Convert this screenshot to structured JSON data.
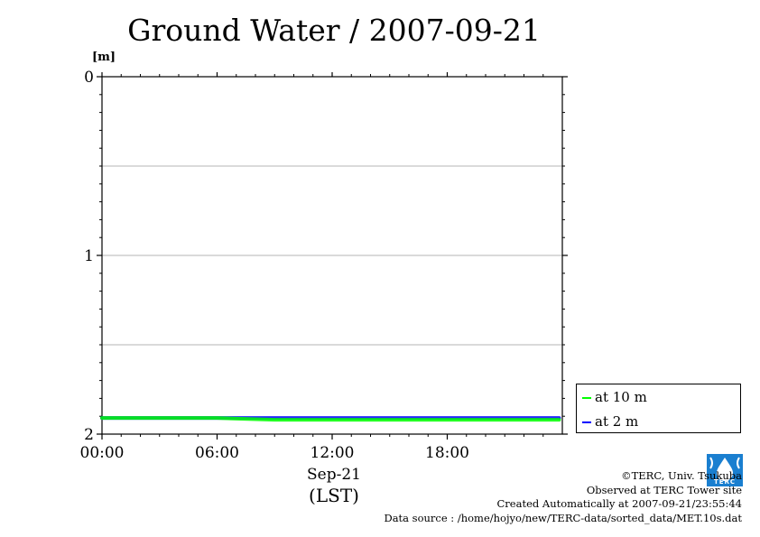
{
  "chart_data": {
    "type": "line",
    "title": "Ground Water / 2007-09-21",
    "ylabel": "[m]",
    "ylim": [
      0,
      2
    ],
    "y_inverted": true,
    "y_ticks": [
      "0",
      "1",
      "2"
    ],
    "x_ticks": [
      "00:00",
      "06:00",
      "12:00",
      "18:00"
    ],
    "x_date_label": "Sep-21",
    "x_zone_label": "(LST)",
    "grid": true,
    "legend_position": "bottom-right",
    "series": [
      {
        "name": "at 10 m",
        "color": "#00ff00",
        "x": [
          "00:00",
          "03:00",
          "06:00",
          "09:00",
          "12:00",
          "15:00",
          "18:00",
          "21:00",
          "23:50"
        ],
        "values": [
          1.91,
          1.91,
          1.91,
          1.92,
          1.92,
          1.92,
          1.92,
          1.92,
          1.92
        ]
      },
      {
        "name": "at 2 m",
        "color": "#0000ff",
        "x": [
          "00:00",
          "03:00",
          "06:00",
          "09:00",
          "12:00",
          "15:00",
          "18:00",
          "21:00",
          "23:50"
        ],
        "values": [
          1.91,
          1.91,
          1.91,
          1.91,
          1.91,
          1.91,
          1.91,
          1.91,
          1.91
        ]
      }
    ]
  },
  "credits": {
    "copyright": "©TERC, Univ. Tsukuba",
    "observed": "Observed at TERC Tower site",
    "created": "Created Automatically at 2007-09-21/23:55:44",
    "source": "Data source : /home/hojyo/new/TERC-data/sorted_data/MET.10s.dat"
  },
  "logo": {
    "text": "TERC",
    "color": "#1a7fd0"
  }
}
